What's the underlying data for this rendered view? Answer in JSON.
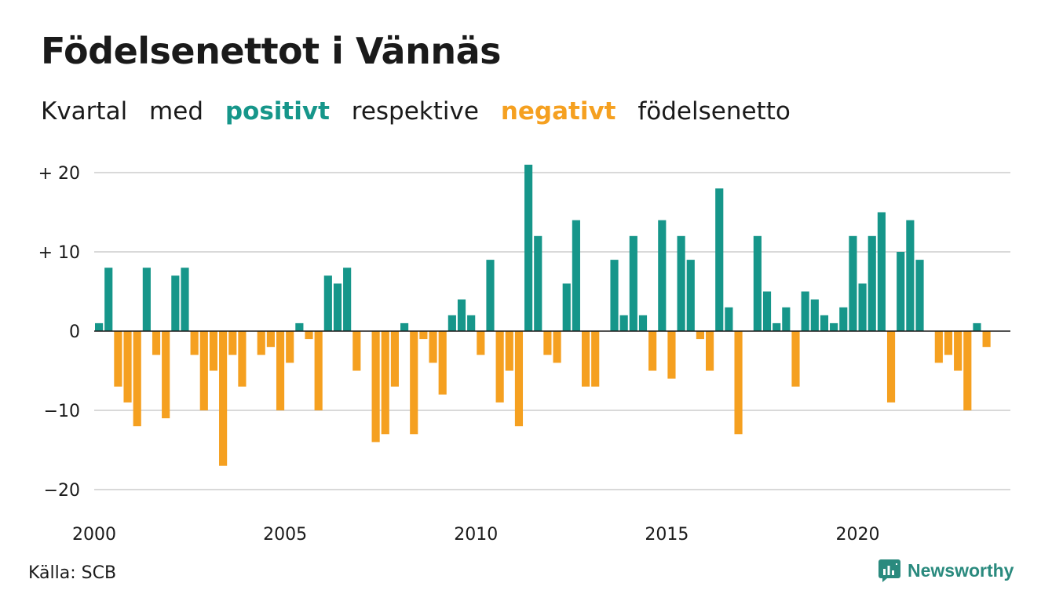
{
  "title": "Födelsenettot i Vännäs",
  "subtitle": {
    "w1": "Kvartal",
    "w2": "med",
    "positive": "positivt",
    "w3": "respektive",
    "negative": "negativt",
    "w4": "födelsenetto"
  },
  "source": "Källa: SCB",
  "brand": "Newsworthy",
  "colors": {
    "positive": "#16968a",
    "negative": "#f5a020",
    "grid": "#d9d9d9",
    "brand": "#2a8a7e"
  },
  "chart_data": {
    "type": "bar",
    "title": "Födelsenettot i Vännäs",
    "xlabel": "",
    "ylabel": "",
    "ylim": [
      -20,
      21
    ],
    "grid": true,
    "y_ticks": [
      {
        "value": 20,
        "label": "+ 20"
      },
      {
        "value": 10,
        "label": "+ 10"
      },
      {
        "value": 0,
        "label": "0"
      },
      {
        "value": -10,
        "label": "−10"
      },
      {
        "value": -20,
        "label": "−20"
      }
    ],
    "x_ticks": [
      {
        "value": 2000,
        "label": "2000"
      },
      {
        "value": 2005,
        "label": "2005"
      },
      {
        "value": 2010,
        "label": "2010"
      },
      {
        "value": 2015,
        "label": "2015"
      },
      {
        "value": 2020,
        "label": "2020"
      }
    ],
    "categories": [
      "2000 K1",
      "2000 K2",
      "2000 K3",
      "2000 K4",
      "2001 K1",
      "2001 K2",
      "2001 K3",
      "2001 K4",
      "2002 K1",
      "2002 K2",
      "2002 K3",
      "2002 K4",
      "2003 K1",
      "2003 K2",
      "2003 K3",
      "2003 K4",
      "2004 K1",
      "2004 K2",
      "2004 K3",
      "2004 K4",
      "2005 K1",
      "2005 K2",
      "2005 K3",
      "2005 K4",
      "2006 K1",
      "2006 K2",
      "2006 K3",
      "2006 K4",
      "2007 K1",
      "2007 K2",
      "2007 K3",
      "2007 K4",
      "2008 K1",
      "2008 K2",
      "2008 K3",
      "2008 K4",
      "2009 K1",
      "2009 K2",
      "2009 K3",
      "2009 K4",
      "2010 K1",
      "2010 K2",
      "2010 K3",
      "2010 K4",
      "2011 K1",
      "2011 K2",
      "2011 K3",
      "2011 K4",
      "2012 K1",
      "2012 K2",
      "2012 K3",
      "2012 K4",
      "2013 K1",
      "2013 K2",
      "2013 K3",
      "2013 K4",
      "2014 K1",
      "2014 K2",
      "2014 K3",
      "2014 K4",
      "2015 K1",
      "2015 K2",
      "2015 K3",
      "2015 K4",
      "2016 K1",
      "2016 K2",
      "2016 K3",
      "2016 K4",
      "2017 K1",
      "2017 K2",
      "2017 K3",
      "2017 K4",
      "2018 K1",
      "2018 K2",
      "2018 K3",
      "2018 K4",
      "2019 K1",
      "2019 K2",
      "2019 K3",
      "2019 K4",
      "2020 K1",
      "2020 K2",
      "2020 K3",
      "2020 K4",
      "2021 K1",
      "2021 K2",
      "2021 K3",
      "2021 K4",
      "2022 K1",
      "2022 K2",
      "2022 K3",
      "2022 K4",
      "2023 K1",
      "2023 K2",
      "2023 K3",
      "2023 K4"
    ],
    "values": [
      1,
      8,
      -7,
      -9,
      -12,
      8,
      -3,
      -11,
      7,
      8,
      -3,
      -10,
      -5,
      -17,
      -3,
      -7,
      0,
      -3,
      -2,
      -10,
      -4,
      1,
      -1,
      -10,
      7,
      6,
      8,
      -5,
      0,
      -14,
      -13,
      -7,
      1,
      -13,
      -1,
      -4,
      -8,
      2,
      4,
      2,
      -3,
      9,
      -9,
      -5,
      -12,
      21,
      12,
      -3,
      -4,
      6,
      14,
      -7,
      -7,
      0,
      9,
      2,
      12,
      2,
      -5,
      14,
      -6,
      12,
      9,
      -1,
      -5,
      18,
      3,
      -13,
      0,
      12,
      5,
      1,
      3,
      -7,
      5,
      4,
      2,
      1,
      3,
      12,
      6,
      12,
      15,
      -9,
      10,
      14,
      9,
      0,
      -4,
      -3,
      -5,
      -10,
      1,
      -2,
      0,
      0
    ]
  }
}
